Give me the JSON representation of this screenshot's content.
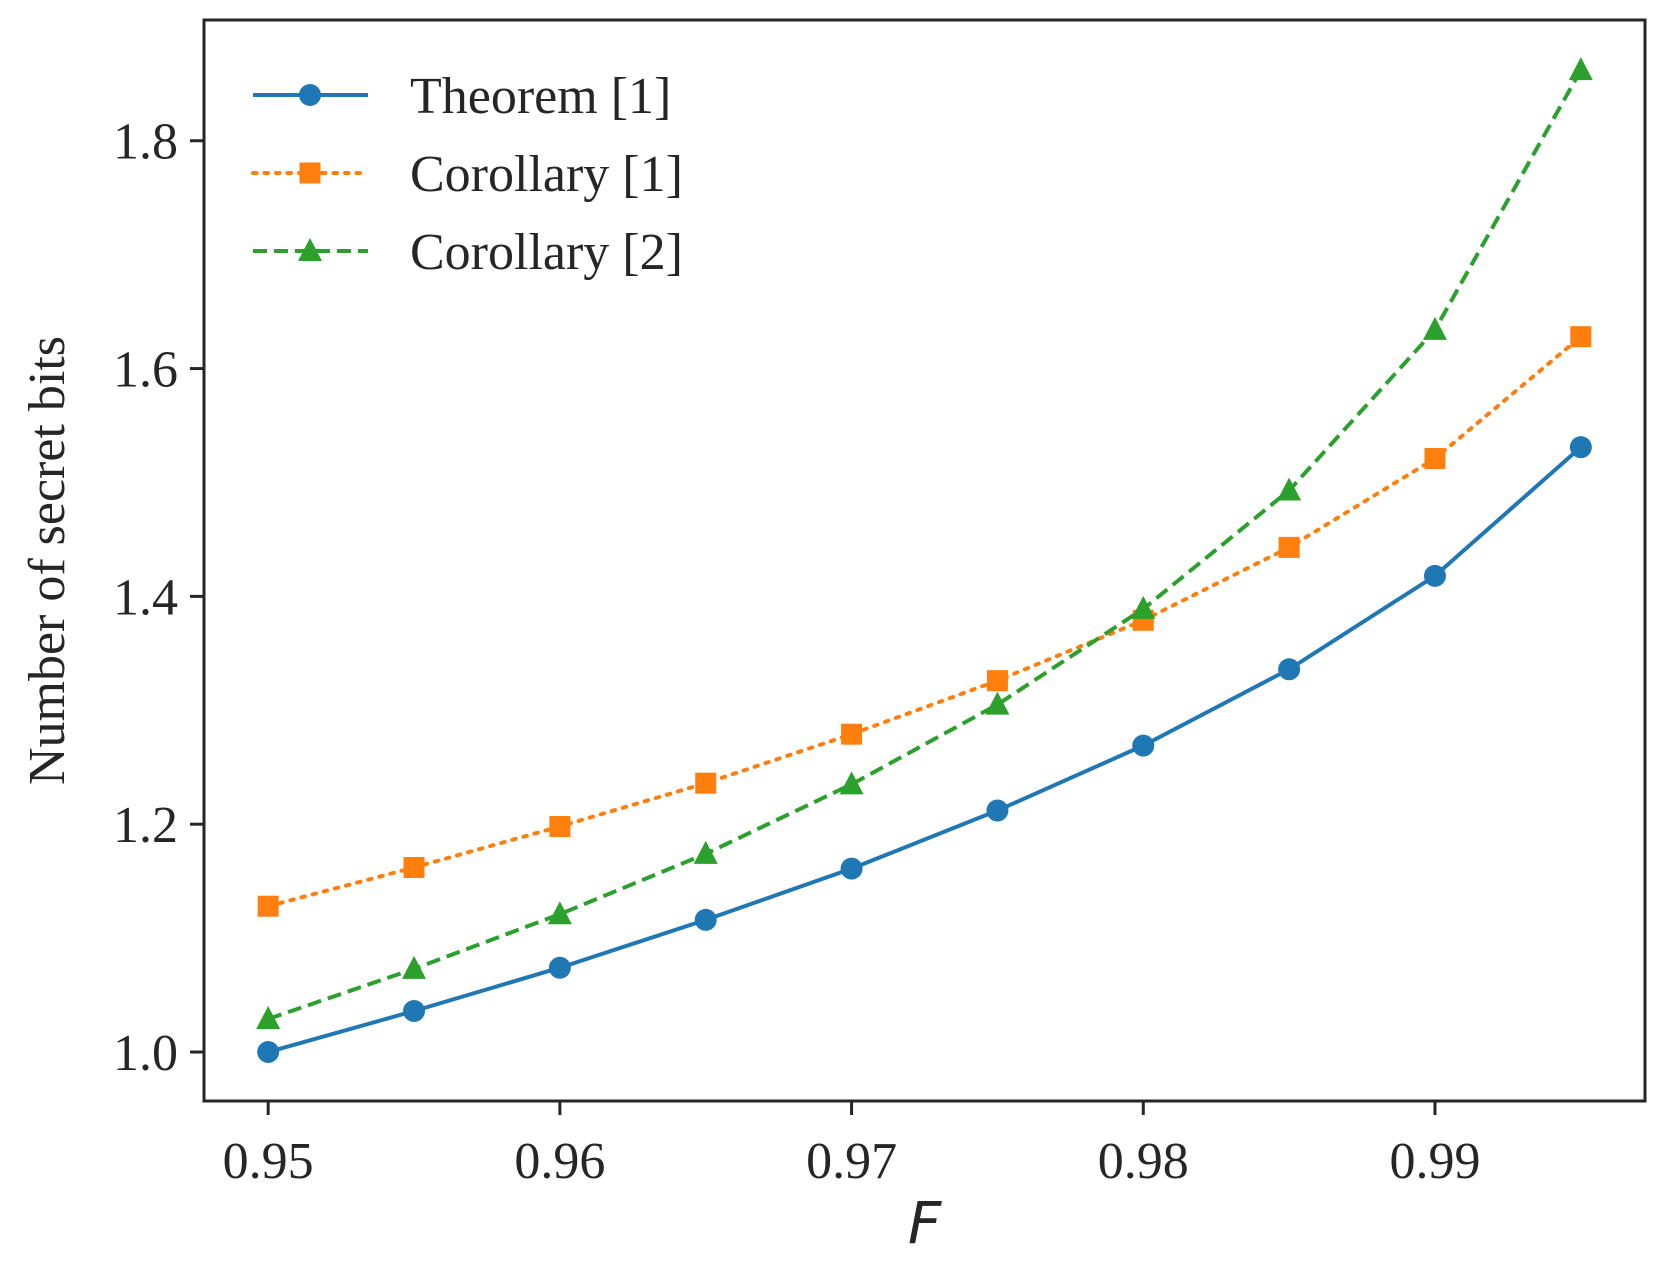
{
  "chart_data": {
    "type": "line",
    "title": "",
    "xlabel": "F",
    "ylabel": "Number of secret bits",
    "xlim": [
      0.9478,
      0.9972
    ],
    "ylim": [
      0.957,
      1.906
    ],
    "xticks": [
      0.95,
      0.96,
      0.97,
      0.98,
      0.99
    ],
    "xtick_labels": [
      "0.95",
      "0.96",
      "0.97",
      "0.98",
      "0.99"
    ],
    "yticks": [
      1.0,
      1.2,
      1.4,
      1.6,
      1.8
    ],
    "ytick_labels": [
      "1.0",
      "1.2",
      "1.4",
      "1.6",
      "1.8"
    ],
    "grid": false,
    "legend_position": "top-left",
    "x": [
      0.95,
      0.955,
      0.96,
      0.965,
      0.97,
      0.975,
      0.98,
      0.985,
      0.99,
      0.995
    ],
    "series": [
      {
        "name": "Theorem [1]",
        "color": "#1f77b4",
        "marker": "circle",
        "linestyle": "solid",
        "values": [
          1.0,
          1.036,
          1.074,
          1.116,
          1.161,
          1.212,
          1.269,
          1.336,
          1.418,
          1.531
        ]
      },
      {
        "name": "Corollary [1]",
        "color": "#ff7f0e",
        "marker": "square",
        "linestyle": "dotted",
        "values": [
          1.128,
          1.162,
          1.198,
          1.236,
          1.279,
          1.326,
          1.379,
          1.443,
          1.521,
          1.628
        ]
      },
      {
        "name": "Corollary [2]",
        "color": "#2ca02c",
        "marker": "triangle",
        "linestyle": "dashed",
        "values": [
          1.029,
          1.073,
          1.121,
          1.174,
          1.235,
          1.305,
          1.389,
          1.493,
          1.634,
          1.862
        ]
      }
    ]
  }
}
